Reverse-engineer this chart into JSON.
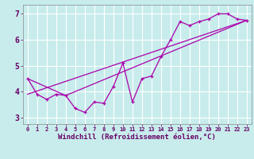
{
  "xlabel": "Windchill (Refroidissement éolien,°C)",
  "bg_color": "#c8ecec",
  "line_color": "#aa00aa",
  "grid_color": "#ffffff",
  "xlim": [
    -0.5,
    23.5
  ],
  "ylim": [
    2.75,
    7.35
  ],
  "yticks": [
    3,
    4,
    5,
    6,
    7
  ],
  "xticks": [
    0,
    1,
    2,
    3,
    4,
    5,
    6,
    7,
    8,
    9,
    10,
    11,
    12,
    13,
    14,
    15,
    16,
    17,
    18,
    19,
    20,
    21,
    22,
    23
  ],
  "line1_x": [
    0,
    1,
    2,
    3,
    4,
    5,
    6,
    7,
    8,
    9,
    10,
    11,
    12,
    13,
    14,
    15,
    16,
    17,
    18,
    19,
    20,
    21,
    22,
    23
  ],
  "line1_y": [
    4.5,
    3.9,
    3.7,
    3.9,
    3.85,
    3.35,
    3.2,
    3.6,
    3.55,
    4.2,
    5.1,
    3.6,
    4.5,
    4.6,
    5.35,
    6.0,
    6.7,
    6.55,
    6.7,
    6.8,
    7.0,
    7.0,
    6.8,
    6.75
  ],
  "line2_x": [
    0,
    4,
    23
  ],
  "line2_y": [
    4.5,
    3.85,
    6.75
  ],
  "line3_x": [
    0,
    23
  ],
  "line3_y": [
    3.9,
    6.75
  ]
}
